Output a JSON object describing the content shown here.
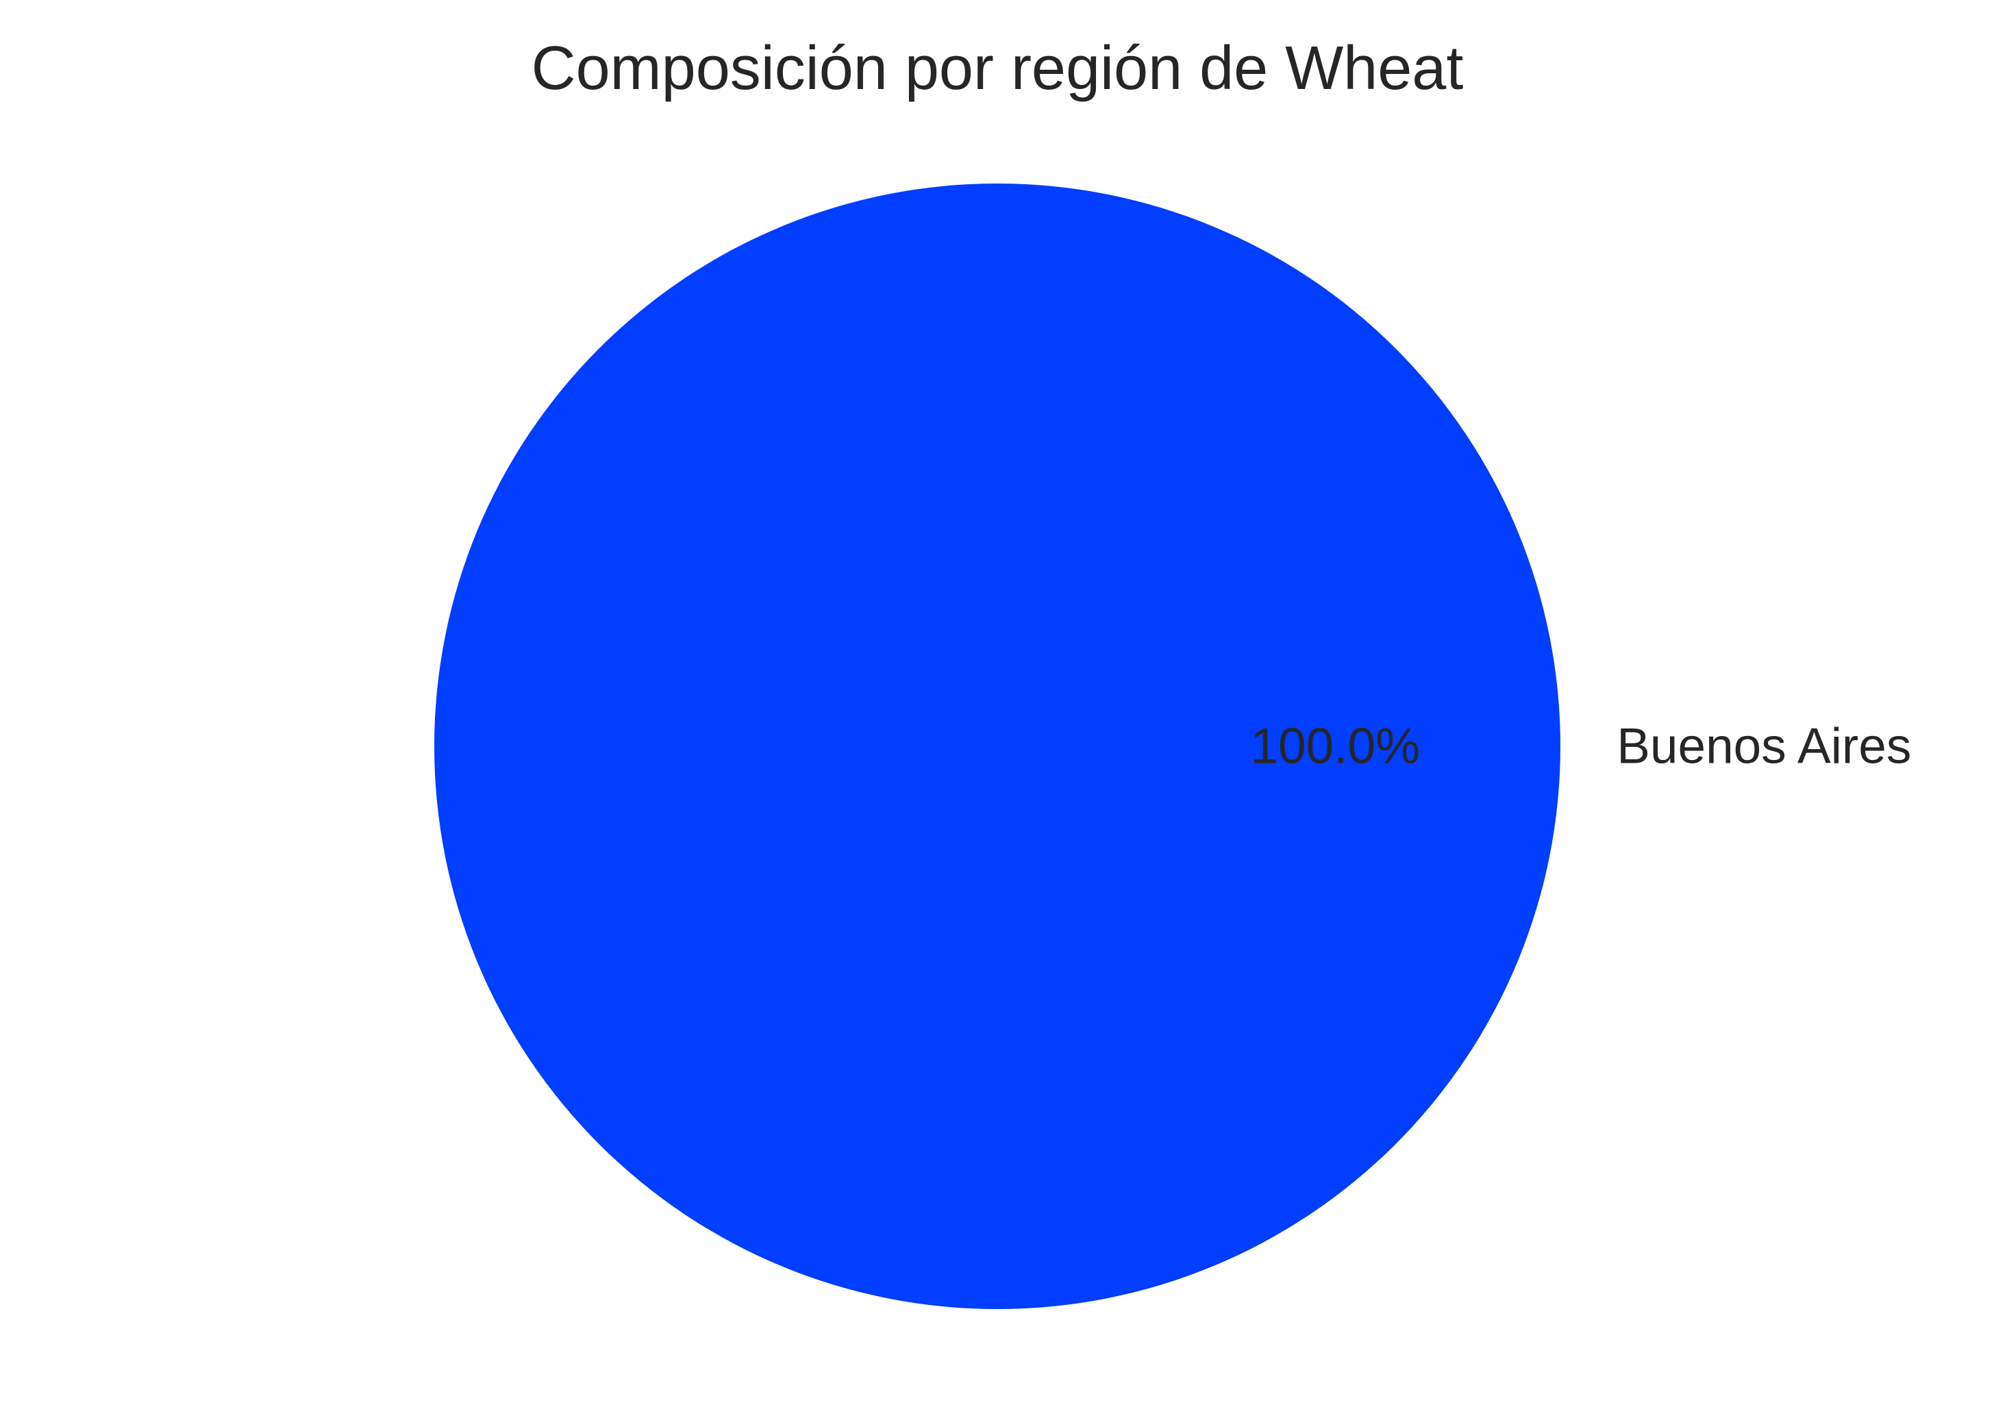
{
  "chart_data": {
    "type": "pie",
    "title": "Composición por región de Wheat",
    "categories": [
      "Buenos Aires"
    ],
    "values": [
      100.0
    ],
    "percent_labels": [
      "100.0%"
    ],
    "colors": [
      "#023eff"
    ]
  }
}
